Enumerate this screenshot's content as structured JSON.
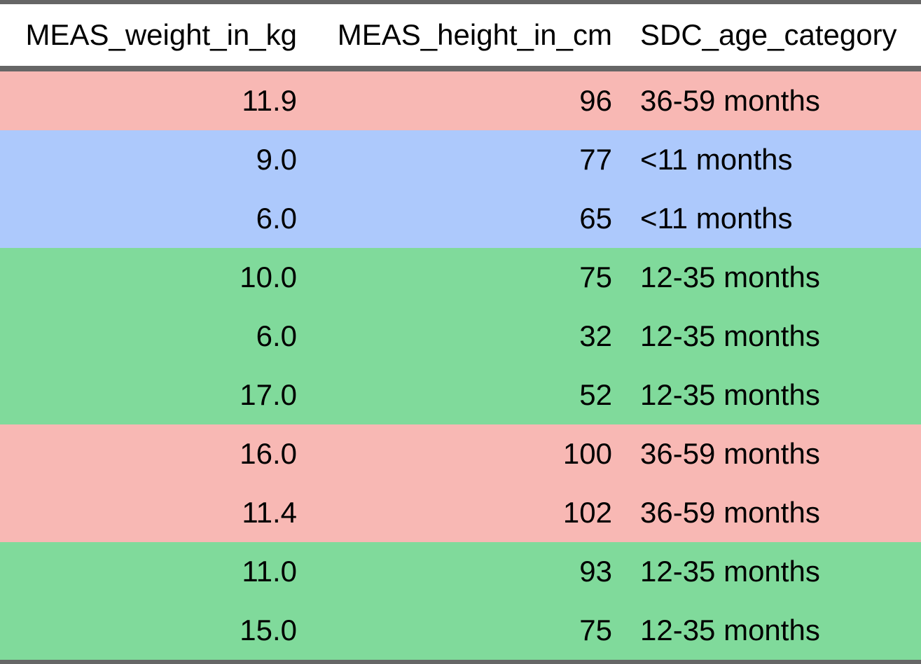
{
  "colors": {
    "36-59 months": "#f8b8b4",
    "<11 months": "#adc9fc",
    "12-35 months": "#80da9b",
    "border": "#666666"
  },
  "table": {
    "headers": [
      "MEAS_weight_in_kg",
      "MEAS_height_in_cm",
      "SDC_age_category"
    ],
    "rows": [
      [
        "11.9",
        "96",
        "36-59 months"
      ],
      [
        "9.0",
        "77",
        "<11 months"
      ],
      [
        "6.0",
        "65",
        "<11 months"
      ],
      [
        "10.0",
        "75",
        "12-35 months"
      ],
      [
        "6.0",
        "32",
        "12-35 months"
      ],
      [
        "17.0",
        "52",
        "12-35 months"
      ],
      [
        "16.0",
        "100",
        "36-59 months"
      ],
      [
        "11.4",
        "102",
        "36-59 months"
      ],
      [
        "11.0",
        "93",
        "12-35 months"
      ],
      [
        "15.0",
        "75",
        "12-35 months"
      ]
    ]
  }
}
